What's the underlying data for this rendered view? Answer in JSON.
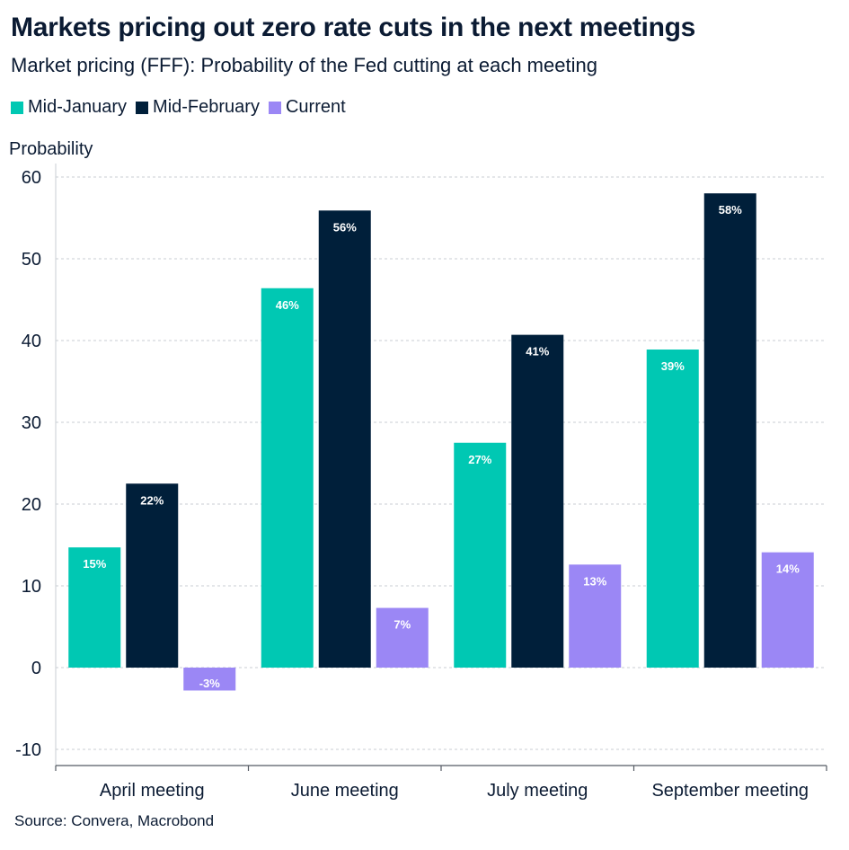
{
  "header": {
    "title": "Markets pricing out zero rate cuts in the next meetings",
    "subtitle": "Market pricing (FFF): Probability of the Fed cutting at each meeting"
  },
  "footer": {
    "source": "Source: Convera, Macrobond"
  },
  "chart_data": {
    "type": "bar",
    "ylabel": "Probability",
    "ylim": [
      -12,
      63
    ],
    "yticks": [
      -10,
      0,
      10,
      20,
      30,
      40,
      50,
      60
    ],
    "grid": true,
    "legend_position": "top-left",
    "categories": [
      "April meeting",
      "June meeting",
      "July meeting",
      "September meeting"
    ],
    "series": [
      {
        "name": "Mid-January",
        "color": "#00c8b3",
        "values": [
          14.7,
          46.4,
          27.5,
          38.9
        ],
        "labels": [
          "15%",
          "46%",
          "27%",
          "39%"
        ],
        "label_color": "#ffffff"
      },
      {
        "name": "Mid-February",
        "color": "#001f3a",
        "values": [
          22.5,
          55.9,
          40.7,
          58.0
        ],
        "labels": [
          "22%",
          "56%",
          "41%",
          "58%"
        ],
        "label_color": "#ffffff"
      },
      {
        "name": "Current",
        "color": "#9b87f5",
        "values": [
          -2.8,
          7.3,
          12.6,
          14.1
        ],
        "labels": [
          "-3%",
          "7%",
          "13%",
          "14%"
        ],
        "label_color": "#ffffff"
      }
    ]
  }
}
